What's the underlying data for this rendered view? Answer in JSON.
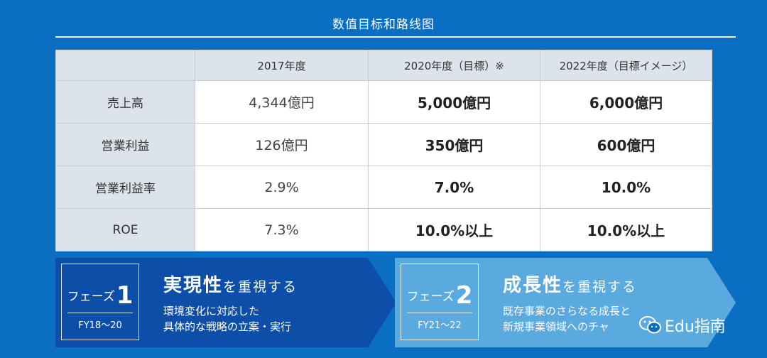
{
  "title": "数值目标和路线图",
  "table": {
    "headers": [
      "",
      "2017年度",
      "2020年度（目標）※",
      "2022年度（目標イメージ）"
    ],
    "rows": [
      {
        "label": "売上高",
        "values": [
          "4,344億円",
          "5,000億円",
          "6,000億円"
        ]
      },
      {
        "label": "営業利益",
        "values": [
          "126億円",
          "350億円",
          "600億円"
        ]
      },
      {
        "label": "営業利益率",
        "values": [
          "2.9%",
          "7.0%",
          "10.0%"
        ]
      },
      {
        "label": "ROE",
        "values": [
          "7.3%",
          "10.0%以上",
          "10.0%以上"
        ]
      }
    ]
  },
  "phases": [
    {
      "name": "フェーズ",
      "number": "1",
      "years": "FY18～20",
      "heading_big": "実現性",
      "heading_small": "を重視する",
      "desc_lines": [
        "環境変化に対応した",
        "具体的な戦略の立案・実行"
      ],
      "color": "#0d4fa8"
    },
    {
      "name": "フェーズ",
      "number": "2",
      "years": "FY21～22",
      "heading_big": "成長性",
      "heading_small": "を重視する",
      "desc_lines": [
        "既存事業のさらなる成長と",
        "新規事業領域へのチャ"
      ],
      "color": "#5aaae0"
    }
  ],
  "watermark": "Edu指南",
  "icons": {
    "watermark": "wechat-icon"
  }
}
